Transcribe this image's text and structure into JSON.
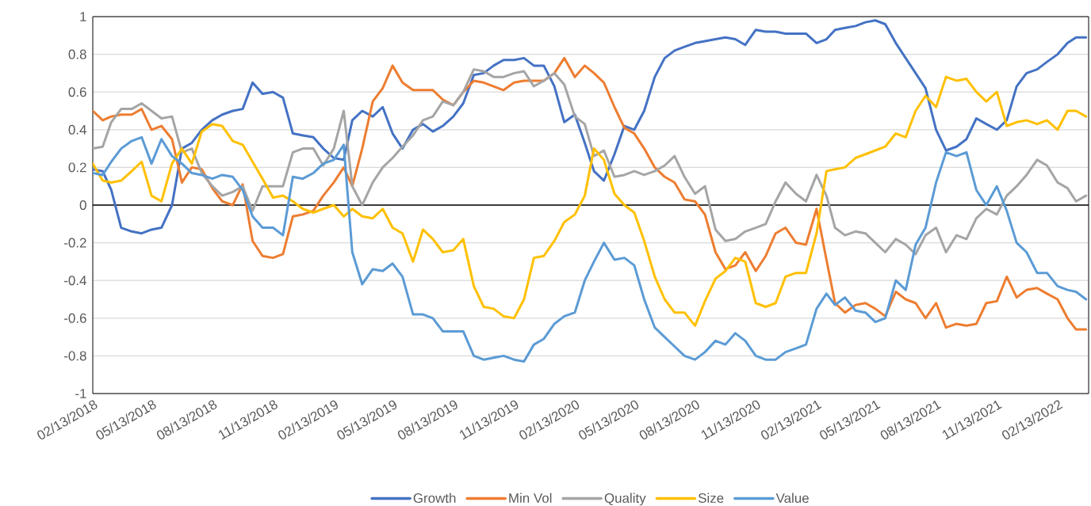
{
  "chart_data": {
    "type": "line",
    "x": [
      "2018-02-13",
      "2018-02-28",
      "2018-03-13",
      "2018-03-28",
      "2018-04-13",
      "2018-04-28",
      "2018-05-13",
      "2018-05-28",
      "2018-06-13",
      "2018-06-28",
      "2018-07-13",
      "2018-07-28",
      "2018-08-13",
      "2018-08-28",
      "2018-09-13",
      "2018-09-28",
      "2018-10-13",
      "2018-10-28",
      "2018-11-13",
      "2018-11-28",
      "2018-12-13",
      "2018-12-28",
      "2019-01-13",
      "2019-01-28",
      "2019-02-13",
      "2019-02-28",
      "2019-03-13",
      "2019-03-28",
      "2019-04-13",
      "2019-04-28",
      "2019-05-13",
      "2019-05-28",
      "2019-06-13",
      "2019-06-28",
      "2019-07-13",
      "2019-07-28",
      "2019-08-13",
      "2019-08-28",
      "2019-09-13",
      "2019-09-28",
      "2019-10-13",
      "2019-10-28",
      "2019-11-13",
      "2019-11-28",
      "2019-12-13",
      "2019-12-28",
      "2020-01-13",
      "2020-01-28",
      "2020-02-13",
      "2020-02-28",
      "2020-03-13",
      "2020-03-28",
      "2020-04-13",
      "2020-04-28",
      "2020-05-13",
      "2020-05-28",
      "2020-06-13",
      "2020-06-28",
      "2020-07-13",
      "2020-07-28",
      "2020-08-13",
      "2020-08-28",
      "2020-09-13",
      "2020-09-28",
      "2020-10-13",
      "2020-10-28",
      "2020-11-13",
      "2020-11-28",
      "2020-12-13",
      "2020-12-28",
      "2021-01-13",
      "2021-01-28",
      "2021-02-13",
      "2021-02-28",
      "2021-03-13",
      "2021-03-28",
      "2021-04-13",
      "2021-04-28",
      "2021-05-13",
      "2021-05-28",
      "2021-06-13",
      "2021-06-28",
      "2021-07-13",
      "2021-07-28",
      "2021-08-13",
      "2021-08-28",
      "2021-09-13",
      "2021-09-28",
      "2021-10-13",
      "2021-10-28",
      "2021-11-13",
      "2021-11-28",
      "2021-12-13",
      "2021-12-28",
      "2022-01-13",
      "2022-01-28",
      "2022-02-13",
      "2022-02-28",
      "2022-03-13",
      "2022-03-28"
    ],
    "series": [
      {
        "name": "Growth",
        "color": "#4472c4",
        "values": [
          0.19,
          0.18,
          0.08,
          -0.12,
          -0.14,
          -0.15,
          -0.13,
          -0.12,
          0,
          0.3,
          0.33,
          0.4,
          0.45,
          0.48,
          0.5,
          0.51,
          0.65,
          0.59,
          0.6,
          0.57,
          0.38,
          0.37,
          0.36,
          0.3,
          0.25,
          0.24,
          0.45,
          0.5,
          0.47,
          0.52,
          0.38,
          0.3,
          0.4,
          0.43,
          0.39,
          0.42,
          0.47,
          0.54,
          0.69,
          0.7,
          0.74,
          0.77,
          0.77,
          0.78,
          0.74,
          0.74,
          0.63,
          0.44,
          0.48,
          0.33,
          0.18,
          0.13,
          0.27,
          0.42,
          0.4,
          0.5,
          0.68,
          0.78,
          0.82,
          0.84,
          0.86,
          0.87,
          0.88,
          0.89,
          0.88,
          0.85,
          0.93,
          0.92,
          0.92,
          0.91,
          0.91,
          0.91,
          0.86,
          0.88,
          0.93,
          0.94,
          0.95,
          0.97,
          0.98,
          0.96,
          0.86,
          0.78,
          0.7,
          0.62,
          0.4,
          0.29,
          0.31,
          0.35,
          0.46,
          0.43,
          0.4,
          0.45,
          0.63,
          0.7,
          0.72,
          0.76,
          0.8,
          0.86,
          0.89,
          0.89
        ]
      },
      {
        "name": "Min Vol",
        "color": "#ed7d31",
        "values": [
          0.5,
          0.45,
          0.47,
          0.48,
          0.48,
          0.51,
          0.4,
          0.42,
          0.35,
          0.12,
          0.2,
          0.19,
          0.09,
          0.02,
          0,
          0.11,
          -0.19,
          -0.27,
          -0.28,
          -0.26,
          -0.06,
          -0.05,
          -0.03,
          0.05,
          0.12,
          0.2,
          0.1,
          0.3,
          0.55,
          0.62,
          0.74,
          0.65,
          0.61,
          0.61,
          0.61,
          0.56,
          0.53,
          0.6,
          0.66,
          0.65,
          0.63,
          0.61,
          0.65,
          0.66,
          0.66,
          0.66,
          0.7,
          0.78,
          0.68,
          0.74,
          0.7,
          0.65,
          0.52,
          0.41,
          0.38,
          0.3,
          0.2,
          0.15,
          0.12,
          0.03,
          0.02,
          -0.05,
          -0.25,
          -0.34,
          -0.32,
          -0.25,
          -0.35,
          -0.27,
          -0.15,
          -0.12,
          -0.2,
          -0.21,
          -0.02,
          -0.29,
          -0.52,
          -0.57,
          -0.53,
          -0.52,
          -0.55,
          -0.59,
          -0.46,
          -0.5,
          -0.52,
          -0.6,
          -0.52,
          -0.65,
          -0.63,
          -0.64,
          -0.63,
          -0.52,
          -0.51,
          -0.38,
          -0.49,
          -0.45,
          -0.44,
          -0.47,
          -0.5,
          -0.6,
          -0.66,
          -0.66
        ]
      },
      {
        "name": "Quality",
        "color": "#a5a5a5",
        "values": [
          0.3,
          0.31,
          0.44,
          0.51,
          0.51,
          0.54,
          0.5,
          0.46,
          0.47,
          0.28,
          0.3,
          0.17,
          0.1,
          0.05,
          0.07,
          0.1,
          -0.03,
          0.1,
          0.1,
          0.1,
          0.28,
          0.3,
          0.3,
          0.21,
          0.3,
          0.5,
          0.1,
          0,
          0.12,
          0.2,
          0.25,
          0.31,
          0.37,
          0.45,
          0.47,
          0.55,
          0.53,
          0.6,
          0.72,
          0.71,
          0.68,
          0.68,
          0.7,
          0.71,
          0.63,
          0.66,
          0.7,
          0.64,
          0.47,
          0.43,
          0.26,
          0.29,
          0.15,
          0.16,
          0.18,
          0.16,
          0.18,
          0.21,
          0.26,
          0.15,
          0.06,
          0.1,
          -0.13,
          -0.19,
          -0.18,
          -0.14,
          -0.12,
          -0.1,
          0.02,
          0.12,
          0.06,
          0.02,
          0.16,
          0.05,
          -0.12,
          -0.16,
          -0.14,
          -0.15,
          -0.2,
          -0.25,
          -0.18,
          -0.21,
          -0.26,
          -0.16,
          -0.12,
          -0.25,
          -0.16,
          -0.18,
          -0.07,
          -0.02,
          -0.05,
          0.05,
          0.1,
          0.16,
          0.24,
          0.21,
          0.12,
          0.09,
          0.02,
          0.05
        ]
      },
      {
        "name": "Size",
        "color": "#ffc000",
        "values": [
          0.22,
          0.13,
          0.12,
          0.13,
          0.18,
          0.23,
          0.05,
          0.02,
          0.22,
          0.3,
          0.22,
          0.39,
          0.43,
          0.42,
          0.34,
          0.32,
          0.23,
          0.14,
          0.04,
          0.05,
          0.02,
          -0.02,
          -0.04,
          -0.02,
          0,
          -0.06,
          -0.02,
          -0.06,
          -0.07,
          -0.02,
          -0.12,
          -0.15,
          -0.3,
          -0.13,
          -0.18,
          -0.25,
          -0.24,
          -0.18,
          -0.43,
          -0.54,
          -0.55,
          -0.59,
          -0.6,
          -0.5,
          -0.28,
          -0.27,
          -0.19,
          -0.09,
          -0.05,
          0.05,
          0.3,
          0.24,
          0.06,
          0,
          -0.04,
          -0.19,
          -0.38,
          -0.5,
          -0.57,
          -0.57,
          -0.64,
          -0.51,
          -0.39,
          -0.35,
          -0.28,
          -0.3,
          -0.52,
          -0.54,
          -0.52,
          -0.38,
          -0.36,
          -0.36,
          -0.15,
          0.18,
          0.19,
          0.2,
          0.25,
          0.27,
          0.29,
          0.31,
          0.38,
          0.36,
          0.5,
          0.58,
          0.52,
          0.68,
          0.66,
          0.67,
          0.6,
          0.55,
          0.6,
          0.42,
          0.44,
          0.45,
          0.43,
          0.45,
          0.4,
          0.5,
          0.5,
          0.47
        ]
      },
      {
        "name": "Value",
        "color": "#5b9bd5",
        "values": [
          0.17,
          0.16,
          0.23,
          0.3,
          0.34,
          0.36,
          0.22,
          0.35,
          0.26,
          0.22,
          0.17,
          0.16,
          0.14,
          0.16,
          0.15,
          0.08,
          -0.06,
          -0.12,
          -0.12,
          -0.16,
          0.15,
          0.14,
          0.17,
          0.22,
          0.24,
          0.32,
          -0.25,
          -0.42,
          -0.34,
          -0.35,
          -0.31,
          -0.38,
          -0.58,
          -0.58,
          -0.6,
          -0.67,
          -0.67,
          -0.67,
          -0.8,
          -0.82,
          -0.81,
          -0.8,
          -0.82,
          -0.83,
          -0.74,
          -0.71,
          -0.63,
          -0.59,
          -0.57,
          -0.4,
          -0.3,
          -0.2,
          -0.29,
          -0.28,
          -0.32,
          -0.5,
          -0.65,
          -0.7,
          -0.75,
          -0.8,
          -0.82,
          -0.78,
          -0.72,
          -0.74,
          -0.68,
          -0.72,
          -0.8,
          -0.82,
          -0.82,
          -0.78,
          -0.76,
          -0.74,
          -0.55,
          -0.47,
          -0.53,
          -0.49,
          -0.56,
          -0.57,
          -0.62,
          -0.6,
          -0.4,
          -0.45,
          -0.21,
          -0.12,
          0.12,
          0.28,
          0.26,
          0.28,
          0.08,
          0,
          0.1,
          -0.03,
          -0.2,
          -0.25,
          -0.36,
          -0.36,
          -0.43,
          -0.45,
          -0.46,
          -0.5
        ]
      }
    ],
    "xlim": [
      "2018-02-13",
      "2022-04-01"
    ],
    "xticks": [
      {
        "value": "2018-02-13",
        "label": "02/13/2018"
      },
      {
        "value": "2018-05-13",
        "label": "05/13/2018"
      },
      {
        "value": "2018-08-13",
        "label": "08/13/2018"
      },
      {
        "value": "2018-11-13",
        "label": "11/13/2018"
      },
      {
        "value": "2019-02-13",
        "label": "02/13/2019"
      },
      {
        "value": "2019-05-13",
        "label": "05/13/2019"
      },
      {
        "value": "2019-08-13",
        "label": "08/13/2019"
      },
      {
        "value": "2019-11-13",
        "label": "11/13/2019"
      },
      {
        "value": "2020-02-13",
        "label": "02/13/2020"
      },
      {
        "value": "2020-05-13",
        "label": "05/13/2020"
      },
      {
        "value": "2020-08-13",
        "label": "08/13/2020"
      },
      {
        "value": "2020-11-13",
        "label": "11/13/2020"
      },
      {
        "value": "2021-02-13",
        "label": "02/13/2021"
      },
      {
        "value": "2021-05-13",
        "label": "05/13/2021"
      },
      {
        "value": "2021-08-13",
        "label": "08/13/2021"
      },
      {
        "value": "2021-11-13",
        "label": "11/13/2021"
      },
      {
        "value": "2022-02-13",
        "label": "02/13/2022"
      }
    ],
    "ylim": [
      -1,
      1
    ],
    "yticks": [
      -1,
      -0.8,
      -0.6,
      -0.4,
      -0.2,
      0,
      0.2,
      0.4,
      0.6,
      0.8,
      1
    ],
    "grid": "y",
    "legend": "bottom"
  }
}
